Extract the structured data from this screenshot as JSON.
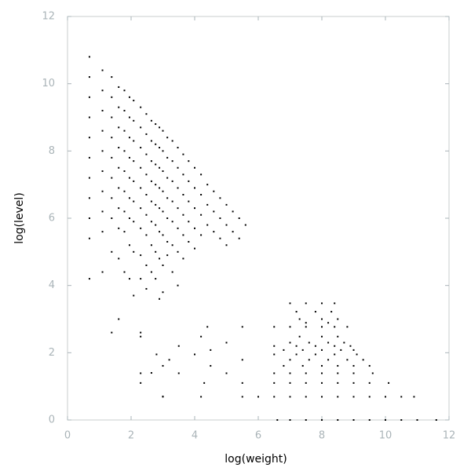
{
  "chart_data": {
    "type": "scatter",
    "xlabel": "log(weight)",
    "ylabel": "log(level)",
    "xlim": [
      0,
      12
    ],
    "ylim": [
      0,
      12
    ],
    "xticks": [
      0,
      2,
      4,
      6,
      8,
      10,
      12
    ],
    "yticks": [
      0,
      2,
      4,
      6,
      8,
      10,
      12
    ],
    "color": "#000000",
    "x": [
      0.69,
      0.69,
      0.69,
      0.69,
      0.69,
      0.69,
      0.69,
      0.69,
      0.69,
      0.69,
      0.69,
      1.1,
      1.1,
      1.1,
      1.1,
      1.1,
      1.1,
      1.1,
      1.1,
      1.1,
      1.1,
      1.39,
      1.39,
      1.39,
      1.39,
      1.39,
      1.39,
      1.39,
      1.39,
      1.39,
      1.39,
      1.61,
      1.61,
      1.61,
      1.61,
      1.61,
      1.61,
      1.61,
      1.61,
      1.61,
      1.61,
      1.79,
      1.79,
      1.79,
      1.79,
      1.79,
      1.79,
      1.79,
      1.79,
      1.79,
      1.95,
      1.95,
      1.95,
      1.95,
      1.95,
      1.95,
      1.95,
      1.95,
      1.95,
      2.08,
      2.08,
      2.08,
      2.08,
      2.08,
      2.08,
      2.08,
      2.08,
      2.08,
      2.3,
      2.3,
      2.3,
      2.3,
      2.3,
      2.3,
      2.3,
      2.3,
      2.3,
      2.3,
      2.48,
      2.48,
      2.48,
      2.48,
      2.48,
      2.48,
      2.48,
      2.48,
      2.48,
      2.64,
      2.64,
      2.64,
      2.64,
      2.64,
      2.64,
      2.64,
      2.64,
      2.64,
      2.77,
      2.77,
      2.77,
      2.77,
      2.77,
      2.77,
      2.77,
      2.77,
      2.89,
      2.89,
      2.89,
      2.89,
      2.89,
      2.89,
      2.89,
      2.89,
      3.0,
      3.0,
      3.0,
      3.0,
      3.0,
      3.0,
      3.0,
      3.0,
      3.0,
      3.14,
      3.14,
      3.14,
      3.14,
      3.14,
      3.14,
      3.14,
      3.3,
      3.3,
      3.3,
      3.3,
      3.3,
      3.3,
      3.3,
      3.47,
      3.47,
      3.47,
      3.47,
      3.47,
      3.47,
      3.47,
      3.64,
      3.64,
      3.64,
      3.64,
      3.64,
      3.64,
      3.81,
      3.81,
      3.81,
      3.81,
      3.81,
      4.0,
      4.0,
      4.0,
      4.0,
      4.0,
      4.2,
      4.2,
      4.2,
      4.2,
      4.4,
      4.4,
      4.4,
      4.6,
      4.6,
      4.6,
      4.8,
      4.8,
      4.8,
      5.0,
      5.0,
      5.0,
      5.2,
      5.2,
      5.4,
      5.4,
      5.6,
      6.6,
      7.0,
      7.5,
      8.0,
      8.5,
      9.0,
      9.5,
      10.0,
      10.5,
      11.0,
      11.6,
      3.0,
      4.2,
      5.5,
      6.0,
      6.5,
      7.0,
      7.5,
      8.0,
      8.5,
      9.0,
      9.5,
      10.0,
      10.5,
      10.9,
      2.3,
      4.3,
      5.5,
      6.5,
      7.0,
      7.5,
      8.0,
      8.5,
      9.0,
      9.5,
      10.1,
      2.3,
      3.5,
      5.0,
      6.5,
      7.0,
      7.5,
      8.0,
      8.5,
      9.0,
      9.6,
      3.0,
      4.5,
      6.8,
      7.4,
      8.0,
      8.5,
      9.0,
      9.5,
      3.2,
      5.5,
      7.0,
      7.6,
      8.2,
      8.8,
      9.3,
      2.8,
      4.0,
      6.5,
      7.2,
      7.8,
      8.4,
      9.1,
      4.5,
      6.8,
      7.4,
      8.0,
      8.6,
      9.0,
      3.5,
      6.5,
      7.2,
      7.8,
      8.4,
      8.9,
      5.0,
      7.0,
      7.6,
      8.2,
      8.7,
      2.3,
      4.2,
      7.3,
      8.0,
      8.5,
      4.4,
      5.5,
      6.5,
      7.0,
      7.5,
      8.0,
      8.4,
      8.8,
      7.5,
      8.2,
      7.3,
      8.0,
      8.5,
      7.2,
      7.8,
      8.3,
      7.0,
      7.5,
      8.0,
      8.4
    ],
    "values": [
      10.8,
      10.2,
      9.6,
      9.0,
      8.4,
      7.8,
      7.2,
      6.6,
      6.0,
      5.4,
      4.2,
      10.4,
      9.8,
      9.2,
      8.6,
      8.0,
      7.4,
      6.8,
      6.2,
      5.6,
      4.4,
      10.2,
      9.6,
      9.0,
      8.4,
      7.8,
      7.2,
      6.6,
      6.0,
      5.0,
      2.6,
      9.9,
      9.3,
      8.7,
      8.1,
      7.5,
      6.9,
      6.3,
      5.7,
      4.8,
      3.0,
      9.8,
      9.2,
      8.6,
      8.0,
      7.4,
      6.8,
      6.2,
      5.6,
      4.4,
      9.6,
      9.0,
      8.4,
      7.8,
      7.2,
      6.6,
      6.0,
      5.2,
      4.2,
      9.5,
      8.9,
      8.3,
      7.7,
      7.1,
      6.5,
      5.9,
      5.0,
      3.7,
      9.3,
      8.7,
      8.1,
      7.5,
      6.9,
      6.3,
      5.7,
      4.9,
      4.2,
      2.6,
      9.1,
      8.5,
      7.9,
      7.3,
      6.7,
      6.1,
      5.5,
      4.6,
      3.9,
      8.9,
      8.3,
      7.7,
      7.1,
      6.5,
      5.9,
      5.2,
      4.4,
      1.4,
      8.8,
      8.2,
      7.6,
      7.0,
      6.4,
      5.8,
      5.0,
      4.2,
      8.7,
      8.1,
      7.5,
      6.9,
      6.3,
      5.6,
      4.8,
      3.6,
      8.6,
      8.0,
      7.4,
      6.8,
      6.2,
      5.5,
      4.6,
      3.8,
      0.7,
      8.4,
      7.8,
      7.2,
      6.6,
      6.0,
      5.3,
      4.9,
      8.3,
      7.7,
      7.1,
      6.5,
      5.9,
      5.2,
      4.4,
      8.1,
      7.5,
      6.9,
      6.3,
      5.7,
      5.0,
      4.0,
      7.9,
      7.3,
      6.7,
      6.1,
      5.5,
      4.8,
      7.7,
      7.1,
      6.5,
      5.9,
      5.3,
      7.5,
      6.9,
      6.3,
      5.7,
      5.1,
      7.3,
      6.7,
      6.1,
      5.5,
      7.0,
      6.4,
      5.8,
      6.8,
      6.2,
      5.6,
      6.6,
      6.0,
      5.4,
      6.4,
      5.8,
      5.2,
      6.2,
      5.6,
      6.0,
      5.4,
      5.8,
      0,
      0,
      0,
      0,
      0,
      0,
      0,
      0,
      0,
      0,
      0,
      0.69,
      0.69,
      0.69,
      0.69,
      0.69,
      0.69,
      0.69,
      0.69,
      0.69,
      0.69,
      0.69,
      0.69,
      0.69,
      0.69,
      1.1,
      1.1,
      1.1,
      1.1,
      1.1,
      1.1,
      1.1,
      1.1,
      1.1,
      1.1,
      1.1,
      1.39,
      1.39,
      1.39,
      1.39,
      1.39,
      1.39,
      1.39,
      1.39,
      1.39,
      1.39,
      1.61,
      1.61,
      1.61,
      1.61,
      1.61,
      1.61,
      1.61,
      1.61,
      1.79,
      1.79,
      1.79,
      1.79,
      1.79,
      1.79,
      1.79,
      1.95,
      1.95,
      1.95,
      1.95,
      1.95,
      1.95,
      1.95,
      2.08,
      2.08,
      2.08,
      2.08,
      2.08,
      2.08,
      2.2,
      2.2,
      2.2,
      2.2,
      2.2,
      2.2,
      2.3,
      2.3,
      2.3,
      2.3,
      2.3,
      2.48,
      2.48,
      2.48,
      2.48,
      2.48,
      2.77,
      2.77,
      2.77,
      2.77,
      2.77,
      2.77,
      2.77,
      2.77,
      2.89,
      2.89,
      3.0,
      3.0,
      3.0,
      3.22,
      3.22,
      3.22,
      3.47,
      3.47,
      3.47,
      3.47
    ]
  }
}
